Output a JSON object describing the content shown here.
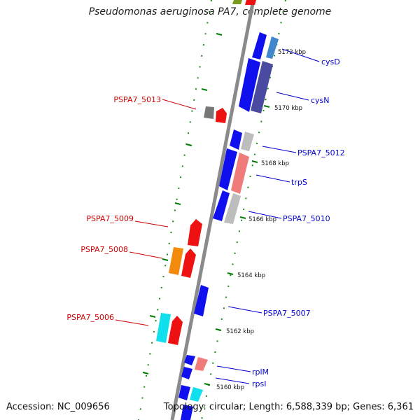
{
  "header": {
    "title": "Pseudomonas aeruginosa PA7, complete genome"
  },
  "footer": {
    "accession": "Accession: NC_009656",
    "stats": "Topology: circular; Length: 6,588,339 bp; Genes: 6,361"
  },
  "colors": {
    "backbone": "#8a8a8a",
    "blue": "#1010ee",
    "red": "#ee1111",
    "gray": "#777777",
    "light_gray": "#bdbdbd",
    "pink": "#f07b7b",
    "orange": "#f38a0c",
    "cyan": "#10e0ee",
    "slate": "#4a4aa0",
    "steel_blue": "#3f86cc",
    "tick_green": "#007a00",
    "label_red": "#cc0000",
    "label_blue": "#0000cc"
  },
  "scale_ticks": [
    "5172 kbp",
    "5170 kbp",
    "5168 kbp",
    "5166 kbp",
    "5164 kbp",
    "5162 kbp",
    "5160 kbp"
  ],
  "gene_labels": {
    "left": [
      "PSPA7_5013",
      "PSPA7_5009",
      "PSPA7_5008",
      "PSPA7_5006"
    ],
    "right": [
      "cysD",
      "cysN",
      "PSPA7_5012",
      "trpS",
      "PSPA7_5010",
      "PSPA7_5007",
      "rplM",
      "rpsI"
    ]
  }
}
